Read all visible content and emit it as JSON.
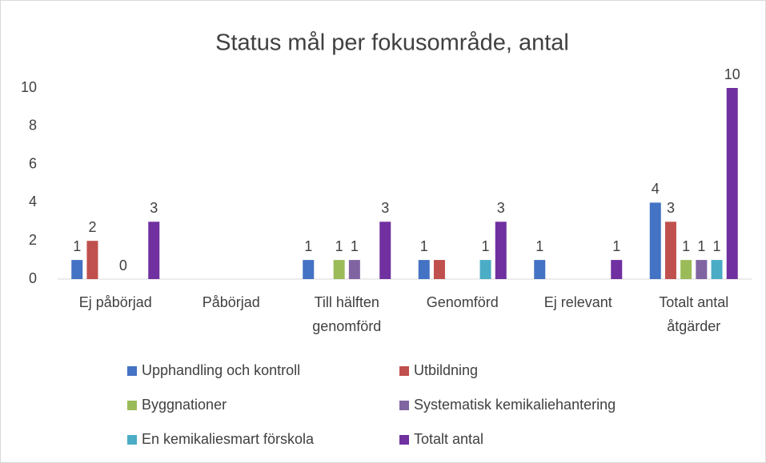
{
  "chart_data": {
    "type": "bar",
    "title": "Status mål per fokusområde, antal",
    "categories": [
      "Ej påbörjad",
      "Påbörjad",
      "Till hälften genomförd",
      "Genomförd",
      "Ej relevant",
      "Totalt antal åtgärder"
    ],
    "series": [
      {
        "name": "Upphandling och kontroll",
        "color": "#4472c4",
        "values": [
          1,
          null,
          1,
          1,
          1,
          4
        ]
      },
      {
        "name": "Utbildning",
        "color": "#c0504d",
        "values": [
          2,
          null,
          null,
          1,
          null,
          3
        ],
        "value_labels": [
          "2",
          null,
          null,
          null,
          null,
          "3"
        ]
      },
      {
        "name": "Byggnationer",
        "color": "#9bbb59",
        "values": [
          null,
          null,
          1,
          null,
          null,
          1
        ]
      },
      {
        "name": "Systematisk kemikaliehantering",
        "color": "#8064a2",
        "values": [
          0,
          null,
          1,
          null,
          null,
          1
        ]
      },
      {
        "name": "En kemikaliesmart förskola",
        "color": "#4bacc6",
        "values": [
          null,
          null,
          null,
          1,
          null,
          1
        ]
      },
      {
        "name": "Totalt antal",
        "color": "#7030a0",
        "values": [
          3,
          null,
          3,
          3,
          1,
          10
        ]
      }
    ],
    "ylim": [
      0,
      10
    ],
    "yticks": [
      0,
      2,
      4,
      6,
      8,
      10
    ],
    "grid": false,
    "legend": "bottom"
  }
}
